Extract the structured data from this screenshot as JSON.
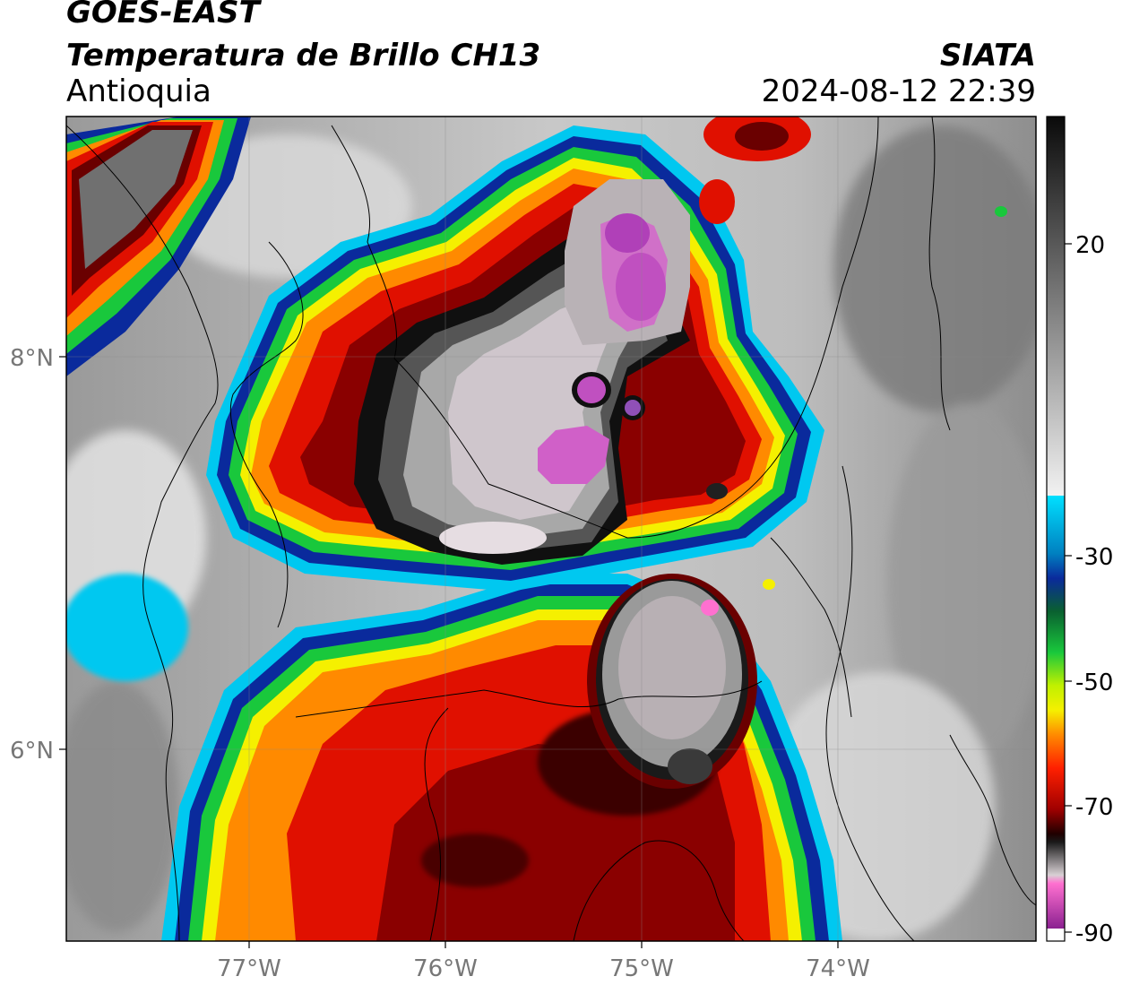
{
  "header": {
    "satellite": "GOES-EAST",
    "product": "Temperatura de Brillo CH13",
    "region": "Antioquia",
    "agency": "SIATA",
    "datetime": "2024-08-12 22:39"
  },
  "axes": {
    "lon_ticks": [
      "77°W",
      "76°W",
      "75°W",
      "74°W"
    ],
    "lat_ticks": [
      "8°N",
      "6°N"
    ]
  },
  "colorbar": {
    "ticks": [
      "20",
      "-30",
      "-50",
      "-70",
      "-90"
    ]
  },
  "colors": {
    "cloud_free_gray": "#8a8a8a",
    "warm_cloud_light": "#e6e6e6",
    "cyan": "#00c8f0",
    "blue": "#0a2a9c",
    "green": "#19c83c",
    "yellow": "#f5f000",
    "orange": "#ff8a00",
    "red": "#e01000",
    "dark_red": "#6a0000",
    "black": "#0a0a0a",
    "pink": "#ff70d0",
    "purple": "#b040b8"
  }
}
